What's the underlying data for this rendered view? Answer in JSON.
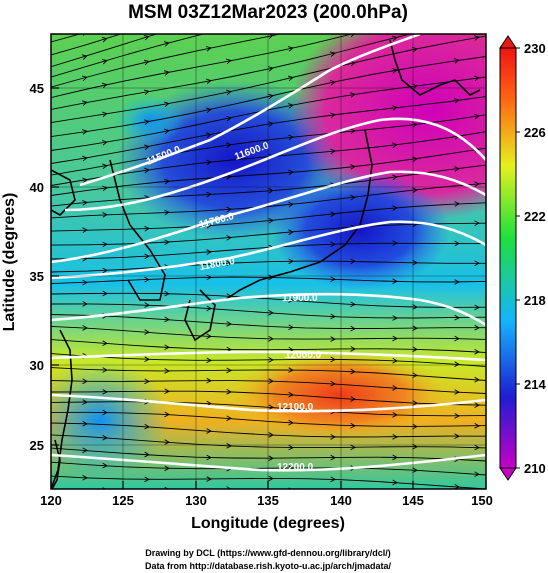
{
  "title": "MSM 03Z12Mar2023 (200.0hPa)",
  "xaxis": {
    "label": "Longitude (degrees)",
    "ticks": [
      "120",
      "125",
      "130",
      "135",
      "140",
      "145",
      "150"
    ],
    "range": [
      120,
      150
    ]
  },
  "yaxis": {
    "label": "Latitude  (degrees)",
    "ticks": [
      "25",
      "30",
      "35",
      "40",
      "45"
    ],
    "range": [
      22.5,
      48
    ]
  },
  "colorbar": {
    "labels": [
      "230",
      "226",
      "222",
      "218",
      "214",
      "210"
    ],
    "range": [
      210,
      230
    ],
    "colors": [
      "#c800c8",
      "#1e1ed2",
      "#14b4ff",
      "#1ee03c",
      "#e6f01e",
      "#ff6414",
      "#f01414"
    ]
  },
  "contours": [
    {
      "label": "11500.0"
    },
    {
      "label": "11600.0"
    },
    {
      "label": "11700.0"
    },
    {
      "label": "11800.0"
    },
    {
      "label": "11900.0"
    },
    {
      "label": "12000.0"
    },
    {
      "label": "12100.0"
    },
    {
      "label": "12200.0"
    }
  ],
  "credits": {
    "line1": "Drawing by DCL (https://www.gfd-dennou.org/library/dcl/)",
    "line2": "Data from http://database.rish.kyoto-u.ac.jp/arch/jmadata/"
  }
}
